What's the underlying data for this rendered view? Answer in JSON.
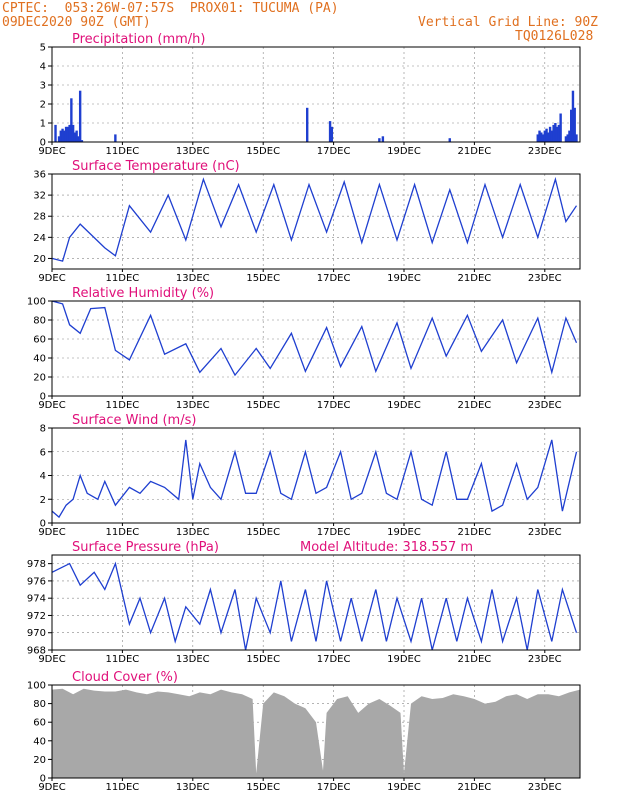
{
  "header": {
    "left_line1": "CPTEC:  053:26W-07:57S  PROX01: TUCUMA (PA)",
    "left_line2": "09DEC2020 90Z (GMT)",
    "right_line1": "Vertical Grid Line: 90Z",
    "right_line2": "TQ0126L028"
  },
  "colors": {
    "header": "#e07020",
    "title": "#e0107a",
    "series": "#1f3fd0",
    "bars": "#1f3fd0",
    "cloud": "#a8a8a8",
    "grid": "#888888"
  },
  "x_labels": [
    "9DEC",
    "11DEC",
    "13DEC",
    "15DEC",
    "17DEC",
    "19DEC",
    "21DEC",
    "23DEC"
  ],
  "chart_data": [
    {
      "id": "precip",
      "type": "bar",
      "title": "Precipitation (mm/h)",
      "ylim": [
        0,
        5
      ],
      "yticks": [
        0,
        1,
        2,
        3,
        4,
        5
      ],
      "x_range_days": [
        9,
        24
      ],
      "x": [
        9.1,
        9.2,
        9.25,
        9.3,
        9.35,
        9.4,
        9.45,
        9.5,
        9.55,
        9.6,
        9.65,
        9.7,
        9.75,
        9.8,
        9.85,
        10.8,
        16.25,
        16.9,
        16.95,
        18.3,
        18.4,
        20.3,
        22.8,
        22.85,
        22.9,
        22.95,
        23.0,
        23.05,
        23.1,
        23.15,
        23.2,
        23.25,
        23.3,
        23.35,
        23.4,
        23.45,
        23.6,
        23.65,
        23.7,
        23.75,
        23.8,
        23.85,
        23.9
      ],
      "values": [
        0.9,
        0.3,
        0.6,
        0.7,
        0.6,
        0.8,
        0.8,
        0.9,
        2.3,
        0.9,
        0.5,
        0.6,
        0.3,
        2.7,
        0.1,
        0.4,
        1.8,
        1.1,
        0.8,
        0.2,
        0.3,
        0.2,
        0.4,
        0.6,
        0.5,
        0.4,
        0.6,
        0.7,
        0.5,
        0.8,
        0.6,
        0.9,
        1.0,
        0.8,
        0.9,
        1.5,
        0.3,
        0.4,
        0.6,
        1.7,
        2.7,
        1.8,
        0.4
      ]
    },
    {
      "id": "temp",
      "type": "line",
      "title": "Surface Temperature (nC)",
      "ylim": [
        18,
        36
      ],
      "yticks": [
        20,
        24,
        28,
        32,
        36
      ],
      "x": [
        9,
        9.3,
        9.5,
        9.8,
        10.5,
        10.8,
        11.2,
        11.8,
        12.3,
        12.8,
        13.3,
        13.8,
        14.3,
        14.8,
        15.3,
        15.8,
        16.3,
        16.8,
        17.3,
        17.8,
        18.3,
        18.8,
        19.3,
        19.8,
        20.3,
        20.8,
        21.3,
        21.8,
        22.3,
        22.8,
        23.3,
        23.6,
        23.9
      ],
      "values": [
        20,
        19.5,
        24,
        26.5,
        22,
        20.5,
        30,
        25,
        32,
        23.5,
        35,
        26,
        34,
        25,
        34,
        23.5,
        34,
        25,
        34.5,
        23,
        34,
        23.5,
        34,
        23,
        33,
        23,
        34,
        24,
        34,
        24,
        35,
        27,
        30
      ]
    },
    {
      "id": "rh",
      "type": "line",
      "title": "Relative Humidity (%)",
      "ylim": [
        0,
        100
      ],
      "yticks": [
        0,
        20,
        40,
        60,
        80,
        100
      ],
      "x": [
        9,
        9.3,
        9.5,
        9.8,
        10.1,
        10.5,
        10.8,
        11.2,
        11.8,
        12.2,
        12.8,
        13.2,
        13.8,
        14.2,
        14.8,
        15.2,
        15.8,
        16.2,
        16.8,
        17.2,
        17.8,
        18.2,
        18.8,
        19.2,
        19.8,
        20.2,
        20.8,
        21.2,
        21.8,
        22.2,
        22.8,
        23.2,
        23.6,
        23.9
      ],
      "values": [
        100,
        97,
        75,
        66,
        92,
        93,
        48,
        38,
        85,
        44,
        55,
        25,
        50,
        22,
        50,
        29,
        66,
        26,
        72,
        31,
        73,
        26,
        77,
        29,
        82,
        42,
        85,
        47,
        80,
        35,
        82,
        25,
        82,
        56
      ]
    },
    {
      "id": "wind",
      "type": "line",
      "title": "Surface Wind (m/s)",
      "ylim": [
        0,
        8
      ],
      "yticks": [
        0,
        2,
        4,
        6,
        8
      ],
      "x": [
        9,
        9.2,
        9.4,
        9.6,
        9.8,
        10.0,
        10.3,
        10.5,
        10.8,
        11.2,
        11.5,
        11.8,
        12.2,
        12.6,
        12.8,
        13.0,
        13.2,
        13.5,
        13.8,
        14.2,
        14.5,
        14.8,
        15.2,
        15.5,
        15.8,
        16.2,
        16.5,
        16.8,
        17.2,
        17.5,
        17.8,
        18.2,
        18.5,
        18.8,
        19.2,
        19.5,
        19.8,
        20.2,
        20.5,
        20.8,
        21.2,
        21.5,
        21.8,
        22.2,
        22.5,
        22.8,
        23.2,
        23.5,
        23.9
      ],
      "values": [
        1,
        0.5,
        1.5,
        2,
        4,
        2.5,
        2,
        3.5,
        1.5,
        3,
        2.5,
        3.5,
        3,
        2,
        7,
        2,
        5,
        3,
        2,
        6,
        2.5,
        2.5,
        6,
        2.5,
        2,
        6,
        2.5,
        3,
        6,
        2,
        2.5,
        6,
        2.5,
        2,
        6,
        2,
        1.5,
        6,
        2,
        2,
        5,
        1,
        1.5,
        5,
        2,
        3,
        7,
        1,
        6
      ]
    },
    {
      "id": "press",
      "type": "line",
      "title": "Surface Pressure (hPa)",
      "annotation": "Model Altitude: 318.557 m",
      "ylim": [
        968,
        979
      ],
      "yticks": [
        968,
        970,
        972,
        974,
        976,
        978
      ],
      "x": [
        9,
        9.5,
        9.8,
        10.2,
        10.5,
        10.8,
        11.2,
        11.5,
        11.8,
        12.2,
        12.5,
        12.8,
        13.2,
        13.5,
        13.8,
        14.2,
        14.5,
        14.8,
        15.2,
        15.5,
        15.8,
        16.2,
        16.5,
        16.8,
        17.2,
        17.5,
        17.8,
        18.2,
        18.5,
        18.8,
        19.2,
        19.5,
        19.8,
        20.2,
        20.5,
        20.8,
        21.2,
        21.5,
        21.8,
        22.2,
        22.5,
        22.8,
        23.2,
        23.5,
        23.9
      ],
      "values": [
        977,
        978,
        975.5,
        977,
        975,
        978,
        971,
        974,
        970,
        974,
        969,
        973,
        971,
        975,
        970,
        975,
        968,
        974,
        970,
        976,
        969,
        975,
        969,
        976,
        969,
        974,
        969,
        975,
        969,
        974,
        969,
        974,
        968,
        974,
        969,
        974,
        969,
        975,
        969,
        974,
        968,
        975,
        969,
        975,
        970
      ]
    },
    {
      "id": "cloud",
      "type": "area",
      "title": "Cloud Cover (%)",
      "ylim": [
        0,
        100
      ],
      "yticks": [
        0,
        20,
        40,
        60,
        80,
        100
      ],
      "x": [
        9,
        9.3,
        9.6,
        9.9,
        10.2,
        10.5,
        10.8,
        11.1,
        11.4,
        11.7,
        12.0,
        12.3,
        12.6,
        12.9,
        13.2,
        13.5,
        13.8,
        14.1,
        14.4,
        14.7,
        14.8,
        15.0,
        15.3,
        15.6,
        15.9,
        16.2,
        16.5,
        16.7,
        16.8,
        17.1,
        17.4,
        17.7,
        18.0,
        18.3,
        18.6,
        18.9,
        19.0,
        19.2,
        19.5,
        19.8,
        20.1,
        20.4,
        20.7,
        21.0,
        21.3,
        21.6,
        21.9,
        22.2,
        22.5,
        22.8,
        23.1,
        23.4,
        23.7,
        24.0
      ],
      "values": [
        95,
        96,
        90,
        96,
        94,
        93,
        93,
        95,
        92,
        90,
        93,
        92,
        90,
        88,
        92,
        90,
        95,
        92,
        90,
        85,
        5,
        80,
        92,
        88,
        80,
        75,
        60,
        8,
        70,
        85,
        88,
        70,
        80,
        85,
        78,
        70,
        5,
        80,
        88,
        85,
        86,
        90,
        88,
        85,
        80,
        82,
        88,
        90,
        85,
        90,
        90,
        88,
        92,
        95
      ]
    }
  ]
}
